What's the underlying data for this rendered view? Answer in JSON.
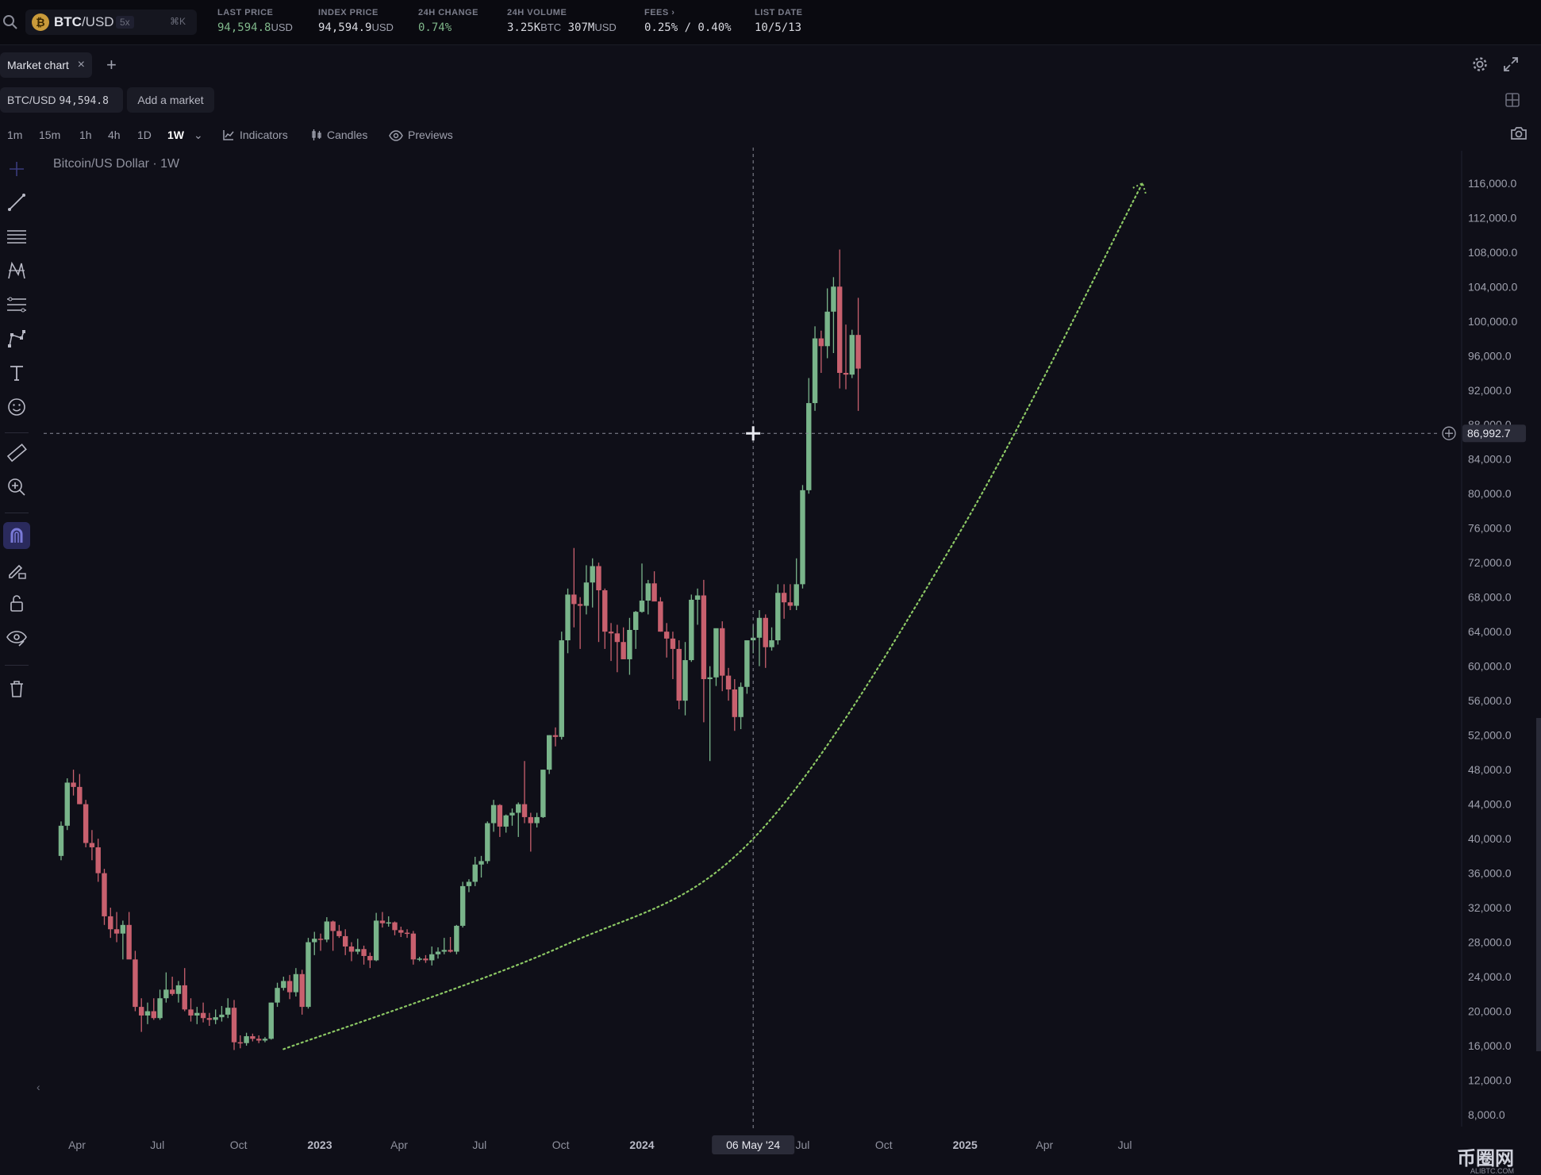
{
  "header": {
    "symbol_base": "BTC",
    "symbol_quote": "/USD",
    "leverage": "5x",
    "shortcut": "⌘K",
    "stats": [
      {
        "label": "LAST PRICE",
        "value": "94,594.8",
        "unit": "USD"
      },
      {
        "label": "INDEX PRICE",
        "value": "94,594.9",
        "unit": "USD"
      },
      {
        "label": "24H CHANGE",
        "value": "0.74%",
        "unit": ""
      },
      {
        "label": "24H VOLUME",
        "value": "3.25K",
        "unit": "BTC",
        "value2": "307M",
        "unit2": "USD"
      },
      {
        "label": "FEES",
        "value": "0.25% / 0.40%",
        "unit": ""
      },
      {
        "label": "LIST DATE",
        "value": "10/5/13",
        "unit": ""
      }
    ]
  },
  "tabs": {
    "active": "Market chart",
    "add": "+"
  },
  "market": {
    "symbol": "BTC/USD",
    "price": "94,594.8",
    "add_label": "Add a market"
  },
  "timeframes": [
    "1m",
    "15m",
    "1h",
    "4h",
    "1D",
    "1W"
  ],
  "toolbar": {
    "indicators": "Indicators",
    "candles": "Candles",
    "previews": "Previews"
  },
  "chart_title": "Bitcoin/US Dollar · 1W",
  "colors": {
    "up": "#79b48a",
    "down": "#c8606e",
    "trend": "#8cc864",
    "bg": "#0f0f18"
  },
  "crosshair": {
    "price_label": "86,992.7",
    "date_label": "06 May '24"
  },
  "watermark": {
    "main": "币圈网",
    "sub": "ALIBTC.COM"
  },
  "chart_data": {
    "type": "candlestick",
    "title": "Bitcoin/US Dollar · 1W",
    "y_ticks": [
      "116,000.0",
      "112,000.0",
      "108,000.0",
      "104,000.0",
      "100,000.0",
      "96,000.0",
      "92,000.0",
      "88,000.0",
      "84,000.0",
      "80,000.0",
      "76,000.0",
      "72,000.0",
      "68,000.0",
      "64,000.0",
      "60,000.0",
      "56,000.0",
      "52,000.0",
      "48,000.0",
      "44,000.0",
      "40,000.0",
      "36,000.0",
      "32,000.0",
      "28,000.0",
      "24,000.0",
      "20,000.0",
      "16,000.0",
      "12,000.0",
      "8,000.0"
    ],
    "x_ticks": [
      {
        "label": "Apr",
        "date": "2022-04-01"
      },
      {
        "label": "Jul",
        "date": "2022-07-01"
      },
      {
        "label": "Oct",
        "date": "2022-10-01"
      },
      {
        "label": "2023",
        "date": "2023-01-01"
      },
      {
        "label": "Apr",
        "date": "2023-04-01"
      },
      {
        "label": "Jul",
        "date": "2023-07-01"
      },
      {
        "label": "Oct",
        "date": "2023-10-01"
      },
      {
        "label": "2024",
        "date": "2024-01-01"
      },
      {
        "label": "Jul",
        "date": "2024-07-01"
      },
      {
        "label": "Oct",
        "date": "2024-10-01"
      },
      {
        "label": "2025",
        "date": "2025-01-01"
      },
      {
        "label": "Apr",
        "date": "2025-04-01"
      },
      {
        "label": "Jul",
        "date": "2025-07-01"
      }
    ],
    "candles_weekly_from": "2022-03-14",
    "candles_ohlc": [
      [
        38000,
        42000,
        37500,
        41500
      ],
      [
        41500,
        47000,
        41000,
        46500
      ],
      [
        46500,
        48000,
        45000,
        46000
      ],
      [
        46000,
        47500,
        44000,
        44000
      ],
      [
        44000,
        44500,
        39000,
        39500
      ],
      [
        39500,
        41000,
        37500,
        39000
      ],
      [
        39000,
        40000,
        35000,
        36000
      ],
      [
        36000,
        36500,
        30000,
        31000
      ],
      [
        31000,
        32000,
        28500,
        29500
      ],
      [
        29500,
        31500,
        28000,
        29000
      ],
      [
        29000,
        30500,
        26000,
        30000
      ],
      [
        30000,
        31500,
        27000,
        26000
      ],
      [
        26000,
        27000,
        20000,
        20500
      ],
      [
        20500,
        21500,
        17600,
        19500
      ],
      [
        19500,
        21000,
        18500,
        20000
      ],
      [
        20000,
        21500,
        19000,
        19200
      ],
      [
        19200,
        22500,
        19000,
        21500
      ],
      [
        21500,
        24500,
        21000,
        22500
      ],
      [
        22500,
        24000,
        21800,
        22000
      ],
      [
        22000,
        23500,
        21000,
        23000
      ],
      [
        23000,
        25000,
        20000,
        20200
      ],
      [
        20200,
        21500,
        18800,
        19500
      ],
      [
        19500,
        20500,
        18500,
        19800
      ],
      [
        19800,
        21000,
        18700,
        19200
      ],
      [
        19200,
        19800,
        18300,
        19000
      ],
      [
        19000,
        20200,
        18500,
        19300
      ],
      [
        19300,
        20600,
        18800,
        19600
      ],
      [
        19600,
        21500,
        19200,
        20400
      ],
      [
        20400,
        21300,
        15500,
        16400
      ],
      [
        16400,
        17200,
        15700,
        16300
      ],
      [
        16300,
        17500,
        16000,
        17100
      ],
      [
        17100,
        17400,
        16500,
        16800
      ],
      [
        16800,
        17200,
        16300,
        16600
      ],
      [
        16600,
        17000,
        16400,
        16800
      ],
      [
        16800,
        21000,
        16700,
        21000
      ],
      [
        21000,
        23300,
        20500,
        22700
      ],
      [
        22700,
        24000,
        22400,
        23500
      ],
      [
        23500,
        24200,
        21400,
        22200
      ],
      [
        22200,
        25000,
        21700,
        24300
      ],
      [
        24300,
        24800,
        19600,
        20500
      ],
      [
        20500,
        28500,
        20300,
        28000
      ],
      [
        28000,
        29200,
        26500,
        28400
      ],
      [
        28400,
        29000,
        27000,
        28300
      ],
      [
        28300,
        30900,
        28000,
        30400
      ],
      [
        30400,
        30500,
        27000,
        29300
      ],
      [
        29300,
        30000,
        28500,
        28700
      ],
      [
        28700,
        29500,
        26500,
        27500
      ],
      [
        27500,
        28000,
        25800,
        26900
      ],
      [
        26900,
        28400,
        26600,
        27200
      ],
      [
        27200,
        27600,
        25400,
        26400
      ],
      [
        26400,
        26800,
        25000,
        25900
      ],
      [
        25900,
        31400,
        25800,
        30500
      ],
      [
        30500,
        31500,
        29700,
        30200
      ],
      [
        30200,
        31000,
        29800,
        30300
      ],
      [
        30300,
        30400,
        28800,
        29400
      ],
      [
        29400,
        29800,
        28600,
        29100
      ],
      [
        29100,
        29500,
        28500,
        29000
      ],
      [
        29000,
        29300,
        25400,
        26000
      ],
      [
        26000,
        26300,
        25800,
        26100
      ],
      [
        26100,
        26500,
        25600,
        25900
      ],
      [
        25900,
        27500,
        25300,
        26600
      ],
      [
        26600,
        27400,
        26100,
        26900
      ],
      [
        26900,
        28500,
        26600,
        27100
      ],
      [
        27100,
        28600,
        26800,
        26900
      ],
      [
        26900,
        30000,
        26600,
        29900
      ],
      [
        29900,
        35000,
        29700,
        34500
      ],
      [
        34500,
        35300,
        33800,
        35000
      ],
      [
        35000,
        37900,
        34500,
        37000
      ],
      [
        37000,
        38000,
        35500,
        37400
      ],
      [
        37400,
        42000,
        37100,
        41800
      ],
      [
        41800,
        44500,
        40800,
        43900
      ],
      [
        43900,
        44000,
        40200,
        41400
      ],
      [
        41400,
        42800,
        40700,
        42700
      ],
      [
        42700,
        43500,
        41500,
        43000
      ],
      [
        43000,
        44200,
        40200,
        44000
      ],
      [
        44000,
        49000,
        41800,
        42500
      ],
      [
        42500,
        43000,
        38500,
        41800
      ],
      [
        41800,
        43000,
        41300,
        42500
      ],
      [
        42500,
        48000,
        42400,
        48000
      ],
      [
        48000,
        52000,
        47500,
        52000
      ],
      [
        52000,
        52900,
        50700,
        51800
      ],
      [
        51800,
        64000,
        51500,
        63000
      ],
      [
        63000,
        69000,
        61500,
        68300
      ],
      [
        68300,
        73700,
        64500,
        67200
      ],
      [
        67200,
        68000,
        62000,
        67000
      ],
      [
        67000,
        71700,
        66000,
        69700
      ],
      [
        69700,
        72500,
        66800,
        71600
      ],
      [
        71600,
        72000,
        62800,
        68800
      ],
      [
        68800,
        69000,
        62000,
        64000
      ],
      [
        64000,
        65000,
        60600,
        63800
      ],
      [
        63800,
        64800,
        59300,
        62800
      ],
      [
        62800,
        64500,
        62000,
        60800
      ],
      [
        60800,
        65600,
        59000,
        64200
      ],
      [
        64200,
        66400,
        62000,
        66300
      ],
      [
        66300,
        71900,
        66200,
        67600
      ],
      [
        67600,
        70000,
        66000,
        69600
      ],
      [
        69600,
        71000,
        67700,
        67500
      ],
      [
        67500,
        68000,
        64000,
        64000
      ],
      [
        64000,
        65000,
        61000,
        63200
      ],
      [
        63200,
        64000,
        58500,
        62000
      ],
      [
        62000,
        63000,
        55000,
        56000
      ],
      [
        56000,
        62800,
        54300,
        60700
      ],
      [
        60700,
        68300,
        60500,
        67700
      ],
      [
        67700,
        69000,
        64800,
        68200
      ],
      [
        68200,
        70000,
        53500,
        58500
      ],
      [
        58500,
        60000,
        49000,
        58700
      ],
      [
        58700,
        61700,
        57700,
        64400
      ],
      [
        64400,
        65200,
        57100,
        58900
      ],
      [
        58900,
        59800,
        56000,
        57300
      ],
      [
        57300,
        58500,
        52500,
        54100
      ],
      [
        54100,
        58100,
        52700,
        57600
      ],
      [
        57600,
        60000,
        56800,
        63000
      ],
      [
        63000,
        64800,
        61500,
        63300
      ],
      [
        63300,
        66500,
        60000,
        65600
      ],
      [
        65600,
        66000,
        59800,
        62200
      ],
      [
        62200,
        64500,
        61800,
        63000
      ],
      [
        63000,
        69500,
        62500,
        68500
      ],
      [
        68500,
        69500,
        65500,
        67400
      ],
      [
        67400,
        69500,
        66500,
        67000
      ],
      [
        67000,
        72500,
        66500,
        69500
      ],
      [
        69500,
        81000,
        69000,
        80400
      ],
      [
        80400,
        93400,
        80000,
        90500
      ],
      [
        90500,
        99400,
        89600,
        98000
      ],
      [
        98000,
        98900,
        94000,
        97100
      ],
      [
        97100,
        103800,
        95700,
        101100
      ],
      [
        101100,
        105100,
        96300,
        104000
      ],
      [
        104000,
        108300,
        92200,
        94000
      ],
      [
        94000,
        99600,
        92100,
        93800
      ],
      [
        93800,
        99000,
        93400,
        98400
      ],
      [
        98400,
        102700,
        89600,
        94500
      ]
    ],
    "trend_curve": [
      {
        "date": "2022-11-21",
        "value": 15600
      },
      {
        "date": "2023-10-02",
        "value": 27500
      },
      {
        "date": "2024-05-06",
        "value": 40000
      },
      {
        "date": "2024-12-23",
        "value": 75000
      },
      {
        "date": "2025-07-21",
        "value": 116000
      }
    ]
  }
}
